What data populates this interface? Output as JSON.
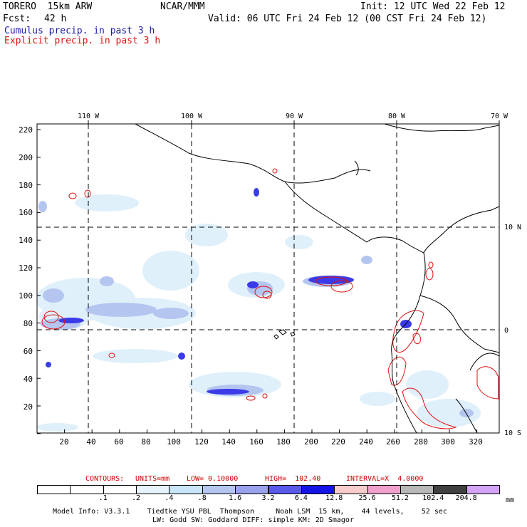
{
  "header": {
    "model": "TORERO  15km ARW",
    "org": "NCAR/MMM",
    "init": "Init: 12 UTC Wed 22 Feb 12",
    "fcst_label": "Fcst:",
    "fcst_value": "42 h",
    "valid": "Valid: 06 UTC Fri 24 Feb 12 (00 CST Fri 24 Feb 12)",
    "legend_cumulus": "Cumulus precip. in past 3 h",
    "legend_explicit": "Explicit precip. in past 3 h"
  },
  "axes": {
    "top_lon": [
      "110 W",
      "100 W",
      "90 W",
      "80 W",
      "70 W"
    ],
    "left_y": [
      "220",
      "200",
      "180",
      "160",
      "140",
      "120",
      "100",
      "80",
      "60",
      "40",
      "20"
    ],
    "bottom_x": [
      "20",
      "40",
      "60",
      "80",
      "100",
      "120",
      "140",
      "160",
      "180",
      "200",
      "220",
      "240",
      "260",
      "280",
      "300",
      "320"
    ],
    "right_lat": [
      "10 N",
      "0",
      "10 S"
    ]
  },
  "contours": {
    "label": "CONTOURS:",
    "units": "UNITS=mm",
    "low": "LOW= 0.10000",
    "high": "HIGH=  102.40",
    "interval": "INTERVAL=X  4.0000"
  },
  "colorbar": {
    "unit": "mm",
    "labels": [
      ".1",
      ".2",
      ".4",
      ".8",
      "1.6",
      "3.2",
      "6.4",
      "12.8",
      "25.6",
      "51.2",
      "102.4",
      "204.8"
    ],
    "colors": [
      "#ffffff",
      "#ffffff",
      "#ffffff",
      "#e8f4fc",
      "#c9e6f8",
      "#b4c6f0",
      "#9aa2ec",
      "#5a5aea",
      "#1414e6",
      "#f8cccc",
      "#f0a0cc",
      "#b8b8b8",
      "#404040",
      "#d4a4f4"
    ]
  },
  "footer": {
    "line1": "Model Info: V3.3.1    Tiedtke YSU PBL  Thompson     Noah LSM  15 km,    44 levels,    52 sec",
    "line2": "LW: Godd SW: Goddard DIFF: simple KM: 2D Smagor"
  }
}
